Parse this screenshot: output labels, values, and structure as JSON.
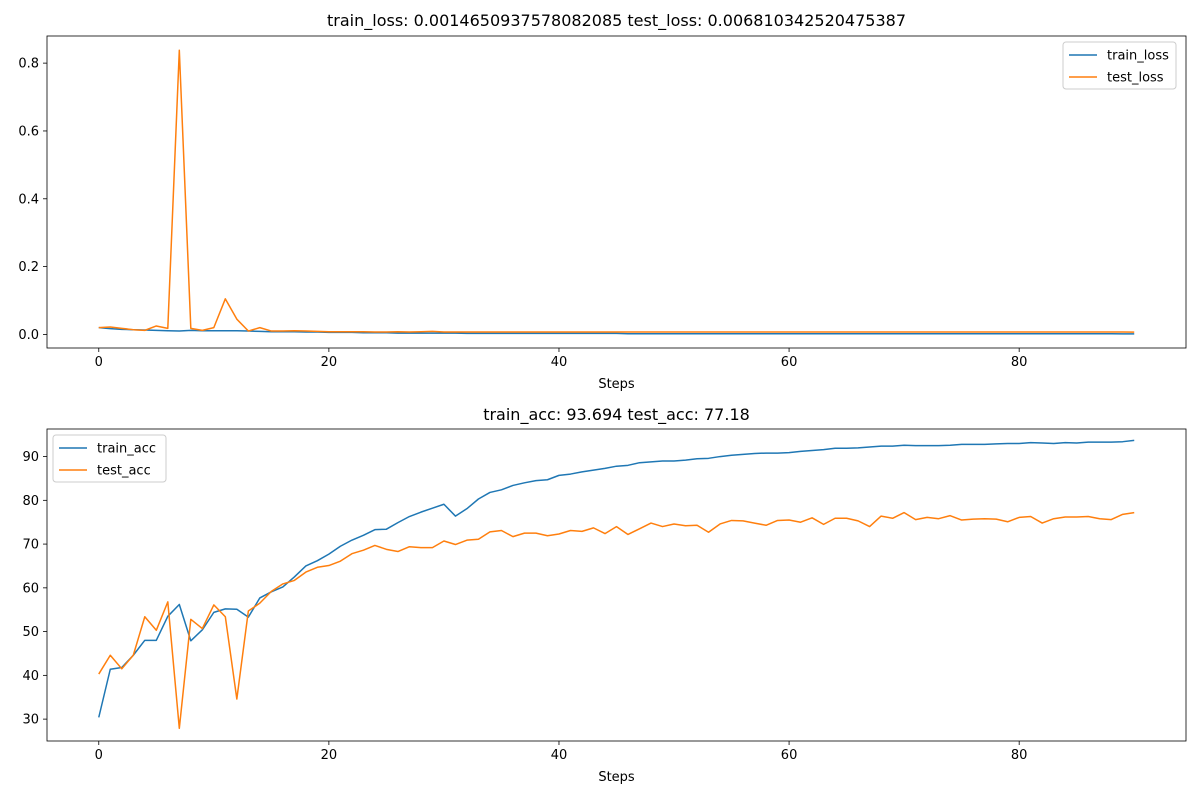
{
  "chart_data": [
    {
      "type": "line",
      "title": "train_loss: 0.0014650937578082085   test_loss: 0.006810342520475387",
      "xlabel": "Steps",
      "ylabel": "",
      "xlim": [
        -4.5,
        94.5
      ],
      "ylim": [
        -0.04,
        0.88
      ],
      "xticks": [
        0,
        20,
        40,
        60,
        80
      ],
      "yticks": [
        0.0,
        0.2,
        0.4,
        0.6,
        0.8
      ],
      "ytick_labels": [
        "0.0",
        "0.2",
        "0.4",
        "0.6",
        "0.8"
      ],
      "legend_position": "upper right",
      "grid": false,
      "x_start": 0,
      "series": [
        {
          "name": "train_loss",
          "color": "#1f77b4",
          "values": [
            0.02,
            0.017,
            0.015,
            0.014,
            0.013,
            0.012,
            0.011,
            0.01,
            0.012,
            0.011,
            0.011,
            0.011,
            0.011,
            0.01,
            0.009,
            0.008,
            0.008,
            0.008,
            0.007,
            0.007,
            0.006,
            0.006,
            0.006,
            0.005,
            0.005,
            0.005,
            0.004,
            0.004,
            0.004,
            0.004,
            0.004,
            0.004,
            0.003,
            0.003,
            0.003,
            0.003,
            0.003,
            0.003,
            0.003,
            0.003,
            0.003,
            0.003,
            0.003,
            0.003,
            0.003,
            0.003,
            0.002,
            0.002,
            0.002,
            0.002,
            0.002,
            0.002,
            0.002,
            0.002,
            0.002,
            0.002,
            0.002,
            0.002,
            0.002,
            0.002,
            0.002,
            0.002,
            0.002,
            0.002,
            0.002,
            0.002,
            0.002,
            0.002,
            0.002,
            0.002,
            0.002,
            0.002,
            0.002,
            0.002,
            0.002,
            0.002,
            0.002,
            0.002,
            0.002,
            0.002,
            0.002,
            0.002,
            0.002,
            0.002,
            0.002,
            0.002,
            0.002,
            0.002,
            0.002,
            0.0015,
            0.0015
          ]
        },
        {
          "name": "test_loss",
          "color": "#ff7f0e",
          "values": [
            0.02,
            0.022,
            0.018,
            0.014,
            0.012,
            0.025,
            0.018,
            0.838,
            0.018,
            0.012,
            0.02,
            0.105,
            0.045,
            0.01,
            0.02,
            0.01,
            0.01,
            0.011,
            0.01,
            0.009,
            0.008,
            0.008,
            0.008,
            0.008,
            0.007,
            0.007,
            0.008,
            0.007,
            0.008,
            0.009,
            0.007,
            0.007,
            0.007,
            0.007,
            0.007,
            0.007,
            0.007,
            0.007,
            0.007,
            0.007,
            0.007,
            0.007,
            0.007,
            0.007,
            0.007,
            0.007,
            0.007,
            0.007,
            0.007,
            0.007,
            0.007,
            0.007,
            0.007,
            0.007,
            0.007,
            0.007,
            0.007,
            0.007,
            0.007,
            0.007,
            0.007,
            0.007,
            0.007,
            0.007,
            0.007,
            0.007,
            0.007,
            0.007,
            0.007,
            0.007,
            0.007,
            0.007,
            0.007,
            0.007,
            0.007,
            0.007,
            0.007,
            0.007,
            0.007,
            0.007,
            0.007,
            0.007,
            0.007,
            0.007,
            0.007,
            0.007,
            0.007,
            0.007,
            0.007,
            0.007,
            0.0068
          ]
        }
      ]
    },
    {
      "type": "line",
      "title": "train_acc: 93.694   test_acc: 77.18",
      "xlabel": "Steps",
      "ylabel": "",
      "xlim": [
        -4.5,
        94.5
      ],
      "ylim": [
        25.0,
        96.3
      ],
      "xticks": [
        0,
        20,
        40,
        60,
        80
      ],
      "yticks": [
        30,
        40,
        50,
        60,
        70,
        80,
        90
      ],
      "ytick_labels": [
        "30",
        "40",
        "50",
        "60",
        "70",
        "80",
        "90"
      ],
      "legend_position": "upper left",
      "grid": false,
      "x_start": 0,
      "series": [
        {
          "name": "train_acc",
          "color": "#1f77b4",
          "values": [
            30.4,
            41.4,
            41.8,
            44.6,
            48.0,
            48.0,
            53.5,
            56.2,
            47.9,
            50.4,
            54.4,
            55.2,
            55.1,
            53.3,
            57.7,
            59.1,
            60.2,
            62.5,
            65.0,
            66.2,
            67.7,
            69.5,
            70.9,
            72.0,
            73.3,
            73.4,
            74.9,
            76.3,
            77.3,
            78.2,
            79.1,
            76.4,
            78.1,
            80.3,
            81.8,
            82.4,
            83.4,
            84.0,
            84.5,
            84.7,
            85.7,
            86.0,
            86.5,
            86.9,
            87.3,
            87.8,
            88.0,
            88.6,
            88.8,
            89.0,
            89.0,
            89.2,
            89.5,
            89.6,
            90.0,
            90.3,
            90.5,
            90.7,
            90.8,
            90.8,
            90.9,
            91.2,
            91.4,
            91.6,
            91.9,
            91.9,
            92.0,
            92.2,
            92.4,
            92.4,
            92.6,
            92.5,
            92.5,
            92.5,
            92.6,
            92.8,
            92.8,
            92.8,
            92.9,
            93.0,
            93.0,
            93.2,
            93.1,
            93.0,
            93.2,
            93.1,
            93.3,
            93.3,
            93.3,
            93.4,
            93.694
          ]
        },
        {
          "name": "test_acc",
          "color": "#ff7f0e",
          "values": [
            40.3,
            44.6,
            41.5,
            44.6,
            53.4,
            50.3,
            56.8,
            27.9,
            52.8,
            50.7,
            56.1,
            53.4,
            34.6,
            54.7,
            56.5,
            59.2,
            60.9,
            61.7,
            63.6,
            64.7,
            65.1,
            66.1,
            67.8,
            68.6,
            69.7,
            68.8,
            68.3,
            69.4,
            69.2,
            69.2,
            70.7,
            69.9,
            70.9,
            71.1,
            72.8,
            73.1,
            71.7,
            72.5,
            72.5,
            71.9,
            72.3,
            73.1,
            72.9,
            73.7,
            72.4,
            74.0,
            72.2,
            73.5,
            74.8,
            74.0,
            74.6,
            74.2,
            74.3,
            72.7,
            74.6,
            75.4,
            75.3,
            74.8,
            74.3,
            75.4,
            75.5,
            75.0,
            76.0,
            74.5,
            75.9,
            75.9,
            75.3,
            74.0,
            76.4,
            75.9,
            77.2,
            75.6,
            76.1,
            75.8,
            76.5,
            75.5,
            75.7,
            75.8,
            75.7,
            75.1,
            76.1,
            76.3,
            74.8,
            75.8,
            76.2,
            76.2,
            76.3,
            75.8,
            75.6,
            76.8,
            77.18
          ]
        }
      ]
    }
  ]
}
